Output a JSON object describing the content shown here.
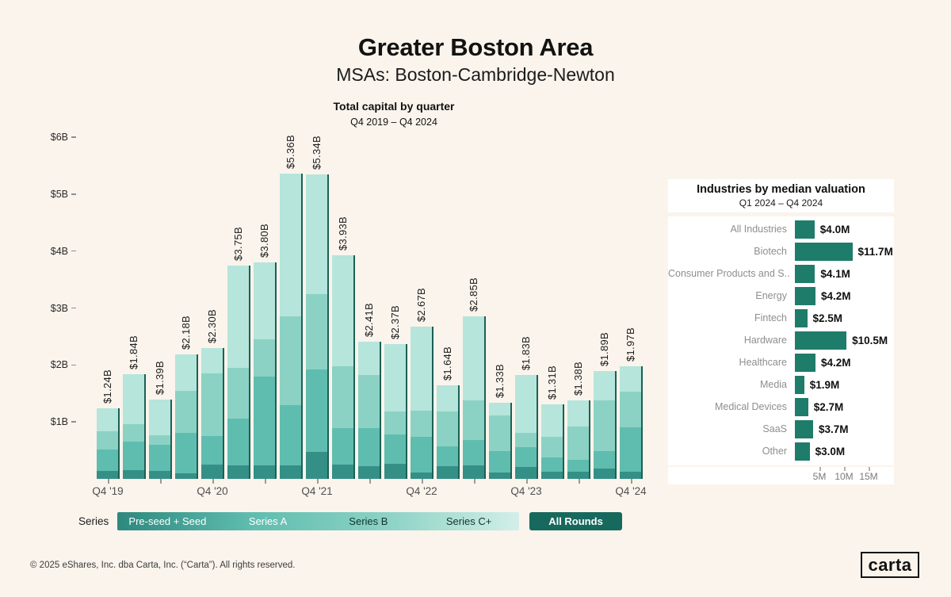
{
  "header": {
    "title": "Greater Boston Area",
    "subtitle": "MSAs: Boston-Cambridge-Newton"
  },
  "legend": {
    "label": "Series",
    "all_rounds": "All Rounds"
  },
  "footer": {
    "text": "© 2025 eShares, Inc. dba Carta, Inc. (“Carta”). All rights reserved.",
    "logo_text": "carta"
  },
  "colors": {
    "background": "#faf4ec",
    "series_colors": [
      "#349086",
      "#5fbdaf",
      "#8bd2c4",
      "#b6e5db"
    ],
    "bar_edge": "#1d5f55",
    "legend_gradient": [
      "#2d887e",
      "#5fbdaf",
      "#8bd2c4",
      "#d2efe8"
    ],
    "all_rounds_bg": "#17695d",
    "industry_bar": "#1e7c6a"
  },
  "chart_data": [
    {
      "type": "bar",
      "stacked": true,
      "title": "Total capital by quarter",
      "subtitle": "Q4 2019 – Q4 2024",
      "unit": "billions USD",
      "ylim": [
        0,
        6
      ],
      "y_ticks": [
        "$1B",
        "$2B",
        "$3B",
        "$4B",
        "$5B",
        "$6B"
      ],
      "x_tick_labels": [
        "Q4 '19",
        "Q4 '20",
        "Q4 '21",
        "Q4 '22",
        "Q4 '23",
        "Q4 '24"
      ],
      "series": [
        "Pre-seed + Seed",
        "Series A",
        "Series B",
        "Series C+"
      ],
      "grid": false,
      "legend_position": "bottom",
      "bars": [
        {
          "label": "$1.24B",
          "total": 1.24,
          "segments": [
            0.14,
            0.37,
            0.32,
            0.41
          ]
        },
        {
          "label": "$1.84B",
          "total": 1.84,
          "segments": [
            0.15,
            0.51,
            0.3,
            0.88
          ]
        },
        {
          "label": "$1.39B",
          "total": 1.39,
          "segments": [
            0.14,
            0.46,
            0.17,
            0.62
          ]
        },
        {
          "label": "$2.18B",
          "total": 2.18,
          "segments": [
            0.1,
            0.71,
            0.74,
            0.63
          ]
        },
        {
          "label": "$2.30B",
          "total": 2.3,
          "segments": [
            0.25,
            0.5,
            1.1,
            0.45
          ]
        },
        {
          "label": "$3.75B",
          "total": 3.75,
          "segments": [
            0.24,
            0.82,
            0.89,
            1.8
          ]
        },
        {
          "label": "$3.80B",
          "total": 3.8,
          "segments": [
            0.24,
            1.56,
            0.65,
            1.35
          ]
        },
        {
          "label": "$5.36B",
          "total": 5.36,
          "segments": [
            0.24,
            1.06,
            1.56,
            2.5
          ]
        },
        {
          "label": "$5.34B",
          "total": 5.34,
          "segments": [
            0.47,
            1.45,
            1.33,
            2.09
          ]
        },
        {
          "label": "$3.93B",
          "total": 3.93,
          "segments": [
            0.25,
            0.64,
            1.08,
            1.96
          ]
        },
        {
          "label": "$2.41B",
          "total": 2.41,
          "segments": [
            0.22,
            0.67,
            0.93,
            0.59
          ]
        },
        {
          "label": "$2.37B",
          "total": 2.37,
          "segments": [
            0.27,
            0.51,
            0.41,
            1.18
          ]
        },
        {
          "label": "$2.67B",
          "total": 2.67,
          "segments": [
            0.11,
            0.63,
            0.46,
            1.47
          ]
        },
        {
          "label": "$1.64B",
          "total": 1.64,
          "segments": [
            0.22,
            0.35,
            0.61,
            0.46
          ]
        },
        {
          "label": "$2.85B",
          "total": 2.85,
          "segments": [
            0.23,
            0.45,
            0.7,
            1.47
          ]
        },
        {
          "label": "$1.33B",
          "total": 1.33,
          "segments": [
            0.11,
            0.38,
            0.62,
            0.22
          ]
        },
        {
          "label": "$1.83B",
          "total": 1.83,
          "segments": [
            0.21,
            0.34,
            0.26,
            1.02
          ]
        },
        {
          "label": "$1.31B",
          "total": 1.31,
          "segments": [
            0.12,
            0.26,
            0.36,
            0.57
          ]
        },
        {
          "label": "$1.38B",
          "total": 1.38,
          "segments": [
            0.12,
            0.22,
            0.58,
            0.46
          ]
        },
        {
          "label": "$1.89B",
          "total": 1.89,
          "segments": [
            0.18,
            0.31,
            0.89,
            0.51
          ]
        },
        {
          "label": "$1.97B",
          "total": 1.97,
          "segments": [
            0.12,
            0.78,
            0.63,
            0.44
          ]
        }
      ]
    },
    {
      "type": "bar",
      "orientation": "horizontal",
      "title": "Industries by median valuation",
      "subtitle": "Q1 2024 – Q4 2024",
      "unit": "millions USD",
      "xlim": [
        0,
        15
      ],
      "x_ticks": [
        "5M",
        "10M",
        "15M"
      ],
      "x_tick_values": [
        5,
        10,
        15
      ],
      "grid": false,
      "rows": [
        {
          "category": "All Industries",
          "value": 4.0,
          "label": "$4.0M"
        },
        {
          "category": "Biotech",
          "value": 11.7,
          "label": "$11.7M"
        },
        {
          "category": "Consumer Products and S..",
          "value": 4.1,
          "label": "$4.1M"
        },
        {
          "category": "Energy",
          "value": 4.2,
          "label": "$4.2M"
        },
        {
          "category": "Fintech",
          "value": 2.5,
          "label": "$2.5M"
        },
        {
          "category": "Hardware",
          "value": 10.5,
          "label": "$10.5M"
        },
        {
          "category": "Healthcare",
          "value": 4.2,
          "label": "$4.2M"
        },
        {
          "category": "Media",
          "value": 1.9,
          "label": "$1.9M"
        },
        {
          "category": "Medical Devices",
          "value": 2.7,
          "label": "$2.7M"
        },
        {
          "category": "SaaS",
          "value": 3.7,
          "label": "$3.7M"
        },
        {
          "category": "Other",
          "value": 3.0,
          "label": "$3.0M"
        }
      ]
    }
  ]
}
